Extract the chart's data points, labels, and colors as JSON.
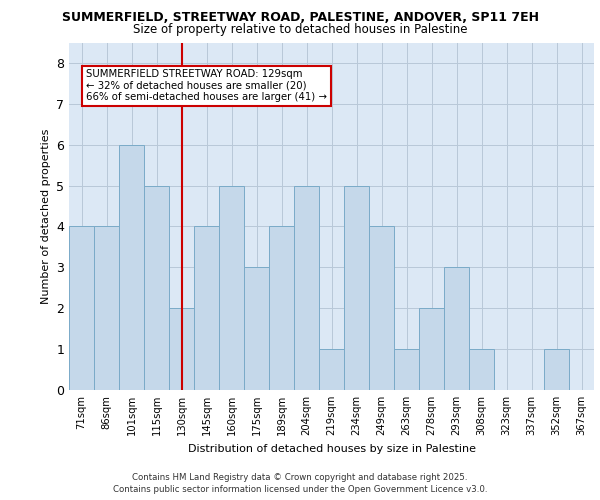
{
  "title_line1": "SUMMERFIELD, STREETWAY ROAD, PALESTINE, ANDOVER, SP11 7EH",
  "title_line2": "Size of property relative to detached houses in Palestine",
  "xlabel": "Distribution of detached houses by size in Palestine",
  "ylabel": "Number of detached properties",
  "categories": [
    "71sqm",
    "86sqm",
    "101sqm",
    "115sqm",
    "130sqm",
    "145sqm",
    "160sqm",
    "175sqm",
    "189sqm",
    "204sqm",
    "219sqm",
    "234sqm",
    "249sqm",
    "263sqm",
    "278sqm",
    "293sqm",
    "308sqm",
    "323sqm",
    "337sqm",
    "352sqm",
    "367sqm"
  ],
  "values": [
    4,
    4,
    6,
    5,
    2,
    4,
    5,
    3,
    4,
    5,
    1,
    5,
    4,
    1,
    2,
    3,
    1,
    0,
    0,
    1,
    0
  ],
  "bar_color": "#c5d8ea",
  "bar_edge_color": "#7aaac8",
  "bg_color": "#dce8f5",
  "vline_index": 4,
  "vline_color": "#cc0000",
  "annotation_text": "SUMMERFIELD STREETWAY ROAD: 129sqm\n← 32% of detached houses are smaller (20)\n66% of semi-detached houses are larger (41) →",
  "ylim": [
    0,
    8.5
  ],
  "yticks": [
    0,
    1,
    2,
    3,
    4,
    5,
    6,
    7,
    8
  ],
  "footer_line1": "Contains HM Land Registry data © Crown copyright and database right 2025.",
  "footer_line2": "Contains public sector information licensed under the Open Government Licence v3.0."
}
